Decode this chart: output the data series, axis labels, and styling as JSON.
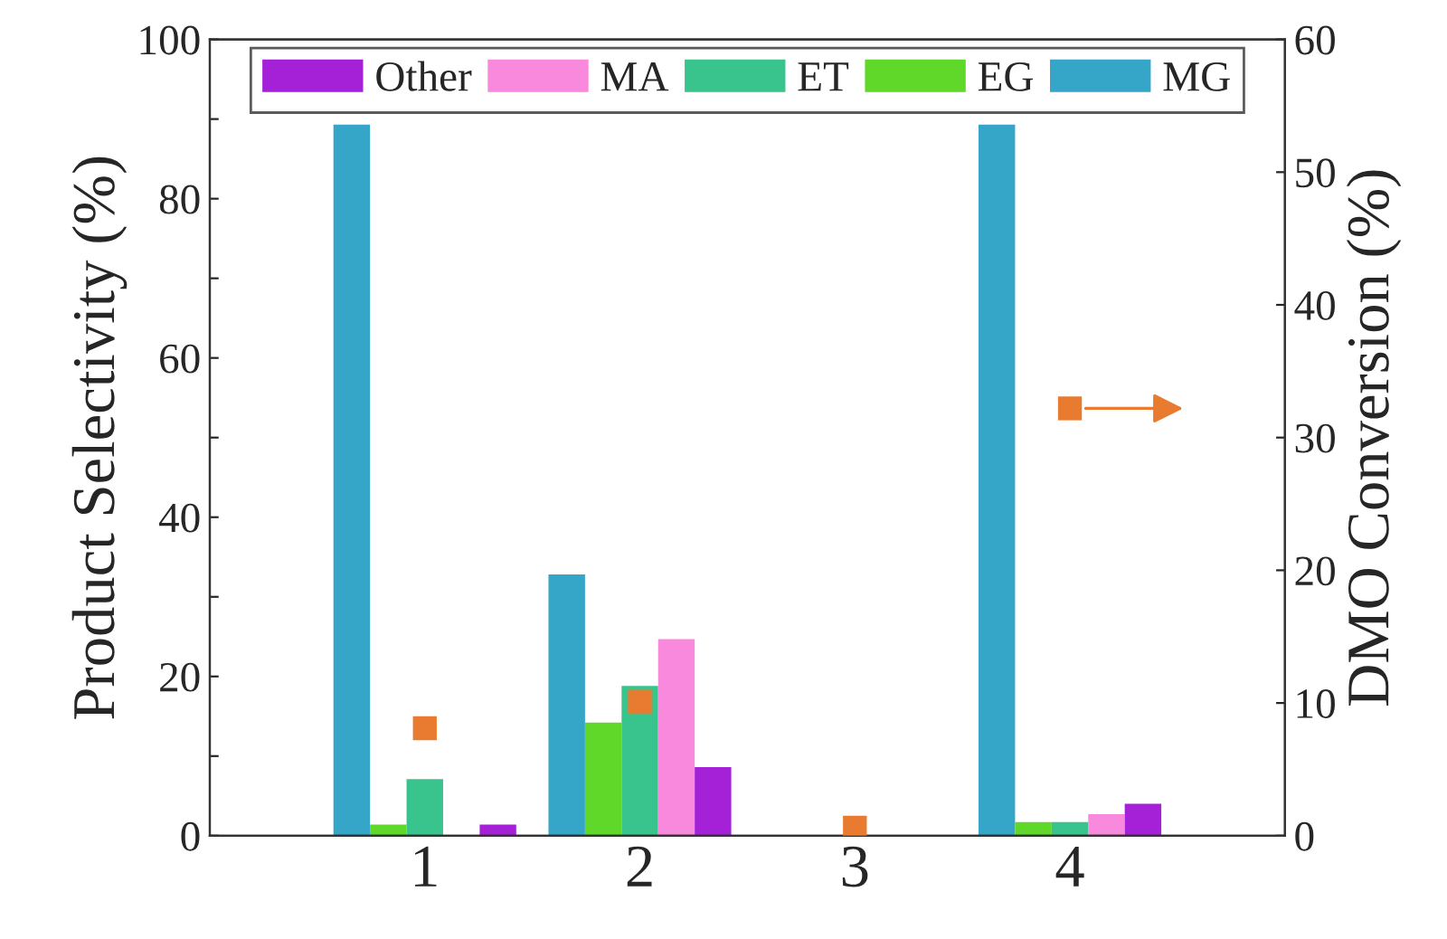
{
  "chart_data": {
    "type": "bar",
    "categories": [
      "1",
      "2",
      "3",
      "4"
    ],
    "ylabel": "Product Selectivity (%)",
    "y2label": "DMO Conversion (%)",
    "ylim": [
      0,
      100
    ],
    "yticks": [
      0,
      {
        "value": 10,
        "label": null
      },
      20,
      {
        "value": 30,
        "label": null
      },
      40,
      {
        "value": 50,
        "label": null
      },
      60,
      {
        "value": 70,
        "label": null
      },
      80,
      {
        "value": 90,
        "label": null
      },
      100
    ],
    "y2lim": [
      0,
      60
    ],
    "y2ticks": [
      0,
      10,
      20,
      30,
      40,
      50,
      60
    ],
    "series": [
      {
        "name": "MG",
        "color": "#35a5c8",
        "values": [
          89.3,
          32.8,
          0,
          89.3
        ]
      },
      {
        "name": "EG",
        "color": "#5fd82a",
        "values": [
          1.4,
          14.2,
          0,
          1.7
        ]
      },
      {
        "name": "ET",
        "color": "#38c48c",
        "values": [
          7.1,
          18.8,
          0,
          1.7
        ]
      },
      {
        "name": "MA",
        "color": "#f989dc",
        "values": [
          0,
          24.7,
          0,
          2.7
        ]
      },
      {
        "name": "Other",
        "color": "#a521d8",
        "values": [
          1.4,
          8.6,
          0,
          4.0
        ]
      },
      {
        "type": "scatter",
        "axis": "y2",
        "color": "#e87b2f",
        "marker": "square",
        "values": [
          8.1,
          10.1,
          0.6,
          32.2
        ]
      }
    ],
    "legend": "top",
    "grid": false
  }
}
